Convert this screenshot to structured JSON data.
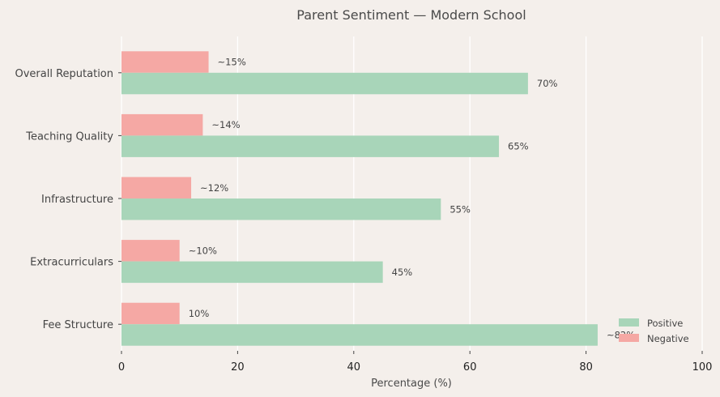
{
  "chart_data": {
    "type": "bar",
    "orientation": "horizontal",
    "title": "Parent Sentiment — Modern School",
    "xlabel": "Percentage (%)",
    "ylabel": "",
    "xlim": [
      0,
      100
    ],
    "xticks": [
      0,
      20,
      40,
      60,
      80,
      100
    ],
    "grid": true,
    "legend_position": "bottom-right",
    "categories": [
      "Overall Reputation",
      "Teaching Quality",
      "Infrastructure",
      "Extracurriculars",
      "Fee Structure"
    ],
    "series": [
      {
        "name": "Positive",
        "color": "#a8d5b9",
        "values": [
          70,
          65,
          55,
          45,
          82
        ],
        "labels": [
          "70%",
          "65%",
          "55%",
          "45%",
          "~82%"
        ]
      },
      {
        "name": "Negative",
        "color": "#f5a8a4",
        "values": [
          15,
          14,
          12,
          10,
          10
        ],
        "labels": [
          "~15%",
          "~14%",
          "~12%",
          "~10%",
          "10%"
        ]
      }
    ]
  }
}
